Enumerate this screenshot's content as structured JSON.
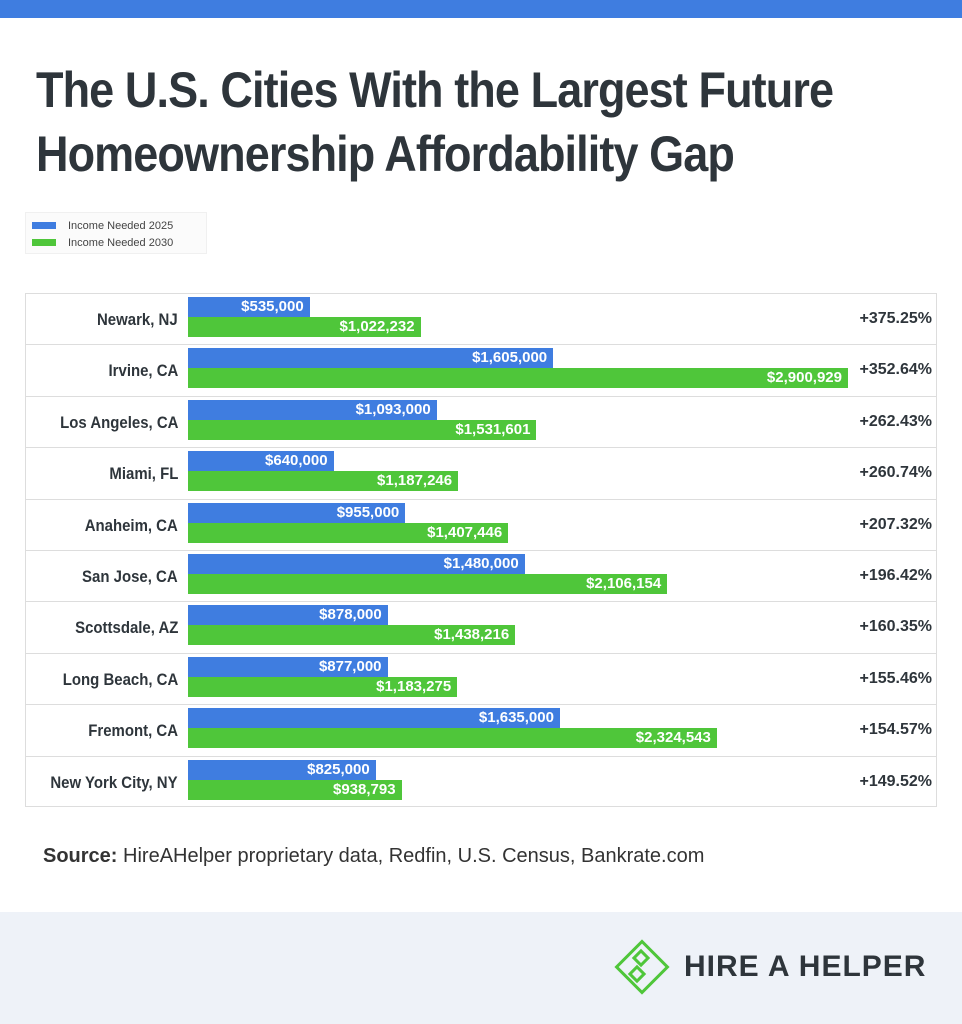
{
  "title": "The U.S. Cities With the Largest Future Homeownership Affordability Gap",
  "source_label": "Source:",
  "source_text": "HireAHelper proprietary data, Redfin, U.S. Census, Bankrate.com",
  "brand": "HIRE A HELPER",
  "colors": {
    "series_2025": "#3f7de0",
    "series_2030": "#4fc63a",
    "top_band": "#3f7de0"
  },
  "chart_data": {
    "type": "bar",
    "orientation": "horizontal",
    "title": "The U.S. Cities With the Largest Future Homeownership Affordability Gap",
    "legend": "top-left",
    "categories": [
      "Newark, NJ",
      "Irvine, CA",
      "Los Angeles, CA",
      "Miami, FL",
      "Anaheim, CA",
      "San Jose, CA",
      "Scottsdale, AZ",
      "Long Beach, CA",
      "Fremont, CA",
      "New York City, NY"
    ],
    "series": [
      {
        "name": "Income Needed 2025",
        "values": [
          535000,
          1605000,
          1093000,
          640000,
          955000,
          1480000,
          878000,
          877000,
          1635000,
          825000
        ],
        "labels": [
          "$535,000",
          "$1,605,000",
          "$1,093,000",
          "$640,000",
          "$955,000",
          "$1,480,000",
          "$878,000",
          "$877,000",
          "$1,635,000",
          "$825,000"
        ]
      },
      {
        "name": "Income Needed 2030",
        "values": [
          1022232,
          2900929,
          1531601,
          1187246,
          1407446,
          2106154,
          1438216,
          1183275,
          2324543,
          938793
        ],
        "labels": [
          "$1,022,232",
          "$2,900,929",
          "$1,531,601",
          "$1,187,246",
          "$1,407,446",
          "$2,106,154",
          "$1,438,216",
          "$1,183,275",
          "$2,324,543",
          "$938,793"
        ]
      }
    ],
    "gap_labels": [
      "+375.25%",
      "+352.64%",
      "+262.43%",
      "+260.74%",
      "+207.32%",
      "+196.42%",
      "+160.35%",
      "+155.46%",
      "+154.57%",
      "+149.52%"
    ]
  }
}
